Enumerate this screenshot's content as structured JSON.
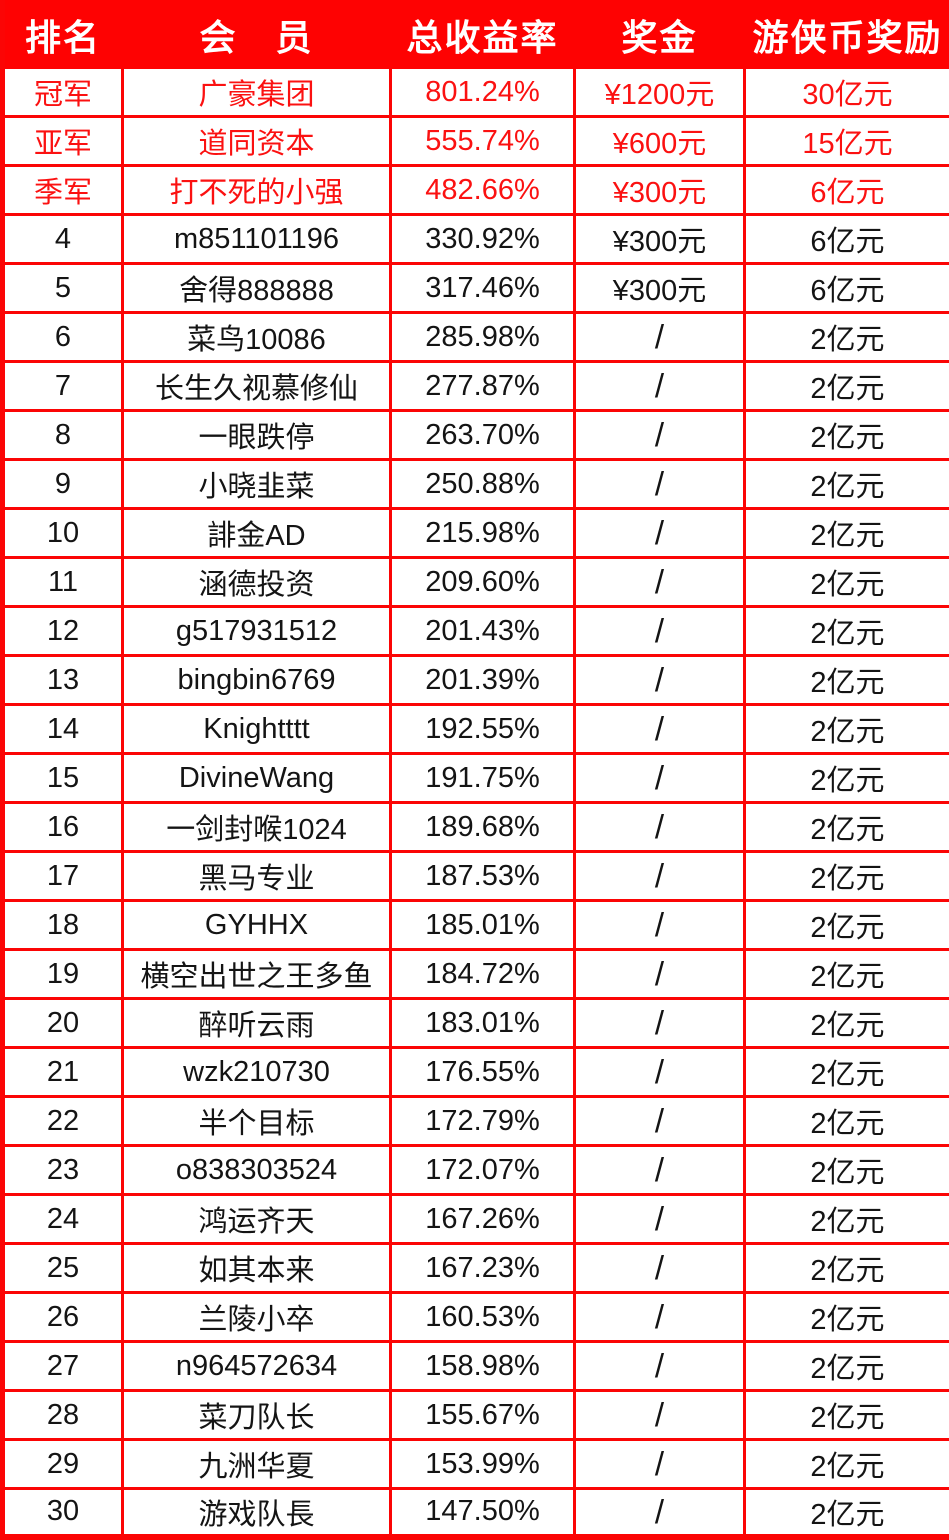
{
  "colors": {
    "accent_red": "#fe0202",
    "border_red": "#fb0505",
    "highlight_text_red": "#fb1111",
    "normal_text": "#141414",
    "header_text": "#ffffff"
  },
  "table": {
    "columns": [
      {
        "key": "rank",
        "label": "排名"
      },
      {
        "key": "member",
        "label": "会　员"
      },
      {
        "key": "return",
        "label": "总收益率"
      },
      {
        "key": "bonus",
        "label": "奖金"
      },
      {
        "key": "coin",
        "label": "游侠币奖励"
      }
    ],
    "rows": [
      {
        "rank": "冠军",
        "member": "广豪集团",
        "return": "801.24%",
        "bonus": "¥1200元",
        "coin": "30亿元",
        "highlight": true
      },
      {
        "rank": "亚军",
        "member": "道同资本",
        "return": "555.74%",
        "bonus": "¥600元",
        "coin": "15亿元",
        "highlight": true
      },
      {
        "rank": "季军",
        "member": "打不死的小强",
        "return": "482.66%",
        "bonus": "¥300元",
        "coin": "6亿元",
        "highlight": true
      },
      {
        "rank": "4",
        "member": "m851101196",
        "return": "330.92%",
        "bonus": "¥300元",
        "coin": "6亿元",
        "highlight": false
      },
      {
        "rank": "5",
        "member": "舍得888888",
        "return": "317.46%",
        "bonus": "¥300元",
        "coin": "6亿元",
        "highlight": false
      },
      {
        "rank": "6",
        "member": "菜鸟10086",
        "return": "285.98%",
        "bonus": "/",
        "coin": "2亿元",
        "highlight": false
      },
      {
        "rank": "7",
        "member": "长生久视慕修仙",
        "return": "277.87%",
        "bonus": "/",
        "coin": "2亿元",
        "highlight": false
      },
      {
        "rank": "8",
        "member": "一眼跌停",
        "return": "263.70%",
        "bonus": "/",
        "coin": "2亿元",
        "highlight": false
      },
      {
        "rank": "9",
        "member": "小晓韭菜",
        "return": "250.88%",
        "bonus": "/",
        "coin": "2亿元",
        "highlight": false
      },
      {
        "rank": "10",
        "member": "誹金AD",
        "return": "215.98%",
        "bonus": "/",
        "coin": "2亿元",
        "highlight": false
      },
      {
        "rank": "11",
        "member": "涵德投资",
        "return": "209.60%",
        "bonus": "/",
        "coin": "2亿元",
        "highlight": false
      },
      {
        "rank": "12",
        "member": "g517931512",
        "return": "201.43%",
        "bonus": "/",
        "coin": "2亿元",
        "highlight": false
      },
      {
        "rank": "13",
        "member": "bingbin6769",
        "return": "201.39%",
        "bonus": "/",
        "coin": "2亿元",
        "highlight": false
      },
      {
        "rank": "14",
        "member": "Knightttt",
        "return": "192.55%",
        "bonus": "/",
        "coin": "2亿元",
        "highlight": false
      },
      {
        "rank": "15",
        "member": "DivineWang",
        "return": "191.75%",
        "bonus": "/",
        "coin": "2亿元",
        "highlight": false
      },
      {
        "rank": "16",
        "member": "一剑封喉1024",
        "return": "189.68%",
        "bonus": "/",
        "coin": "2亿元",
        "highlight": false
      },
      {
        "rank": "17",
        "member": "黑马专业",
        "return": "187.53%",
        "bonus": "/",
        "coin": "2亿元",
        "highlight": false
      },
      {
        "rank": "18",
        "member": "GYHHX",
        "return": "185.01%",
        "bonus": "/",
        "coin": "2亿元",
        "highlight": false
      },
      {
        "rank": "19",
        "member": "横空出世之王多鱼",
        "return": "184.72%",
        "bonus": "/",
        "coin": "2亿元",
        "highlight": false
      },
      {
        "rank": "20",
        "member": "醉听云雨",
        "return": "183.01%",
        "bonus": "/",
        "coin": "2亿元",
        "highlight": false
      },
      {
        "rank": "21",
        "member": "wzk210730",
        "return": "176.55%",
        "bonus": "/",
        "coin": "2亿元",
        "highlight": false
      },
      {
        "rank": "22",
        "member": "半个目标",
        "return": "172.79%",
        "bonus": "/",
        "coin": "2亿元",
        "highlight": false
      },
      {
        "rank": "23",
        "member": "o838303524",
        "return": "172.07%",
        "bonus": "/",
        "coin": "2亿元",
        "highlight": false
      },
      {
        "rank": "24",
        "member": "鸿运齐天",
        "return": "167.26%",
        "bonus": "/",
        "coin": "2亿元",
        "highlight": false
      },
      {
        "rank": "25",
        "member": "如其本来",
        "return": "167.23%",
        "bonus": "/",
        "coin": "2亿元",
        "highlight": false
      },
      {
        "rank": "26",
        "member": "兰陵小卒",
        "return": "160.53%",
        "bonus": "/",
        "coin": "2亿元",
        "highlight": false
      },
      {
        "rank": "27",
        "member": "n964572634",
        "return": "158.98%",
        "bonus": "/",
        "coin": "2亿元",
        "highlight": false
      },
      {
        "rank": "28",
        "member": "菜刀队长",
        "return": "155.67%",
        "bonus": "/",
        "coin": "2亿元",
        "highlight": false
      },
      {
        "rank": "29",
        "member": "九洲华夏",
        "return": "153.99%",
        "bonus": "/",
        "coin": "2亿元",
        "highlight": false
      },
      {
        "rank": "30",
        "member": "游戏队長",
        "return": "147.50%",
        "bonus": "/",
        "coin": "2亿元",
        "highlight": false
      }
    ]
  },
  "chart_data": {
    "type": "table",
    "title": "",
    "columns": [
      "排名",
      "会　员",
      "总收益率",
      "奖金",
      "游侠币奖励"
    ],
    "rows": [
      [
        "冠军",
        "广豪集团",
        "801.24%",
        "¥1200元",
        "30亿元"
      ],
      [
        "亚军",
        "道同资本",
        "555.74%",
        "¥600元",
        "15亿元"
      ],
      [
        "季军",
        "打不死的小强",
        "482.66%",
        "¥300元",
        "6亿元"
      ],
      [
        "4",
        "m851101196",
        "330.92%",
        "¥300元",
        "6亿元"
      ],
      [
        "5",
        "舍得888888",
        "317.46%",
        "¥300元",
        "6亿元"
      ],
      [
        "6",
        "菜鸟10086",
        "285.98%",
        "/",
        "2亿元"
      ],
      [
        "7",
        "长生久视慕修仙",
        "277.87%",
        "/",
        "2亿元"
      ],
      [
        "8",
        "一眼跌停",
        "263.70%",
        "/",
        "2亿元"
      ],
      [
        "9",
        "小晓韭菜",
        "250.88%",
        "/",
        "2亿元"
      ],
      [
        "10",
        "誹金AD",
        "215.98%",
        "/",
        "2亿元"
      ],
      [
        "11",
        "涵德投资",
        "209.60%",
        "/",
        "2亿元"
      ],
      [
        "12",
        "g517931512",
        "201.43%",
        "/",
        "2亿元"
      ],
      [
        "13",
        "bingbin6769",
        "201.39%",
        "/",
        "2亿元"
      ],
      [
        "14",
        "Knightttt",
        "192.55%",
        "/",
        "2亿元"
      ],
      [
        "15",
        "DivineWang",
        "191.75%",
        "/",
        "2亿元"
      ],
      [
        "16",
        "一剑封喉1024",
        "189.68%",
        "/",
        "2亿元"
      ],
      [
        "17",
        "黑马专业",
        "187.53%",
        "/",
        "2亿元"
      ],
      [
        "18",
        "GYHHX",
        "185.01%",
        "/",
        "2亿元"
      ],
      [
        "19",
        "横空出世之王多鱼",
        "184.72%",
        "/",
        "2亿元"
      ],
      [
        "20",
        "醉听云雨",
        "183.01%",
        "/",
        "2亿元"
      ],
      [
        "21",
        "wzk210730",
        "176.55%",
        "/",
        "2亿元"
      ],
      [
        "22",
        "半个目标",
        "172.79%",
        "/",
        "2亿元"
      ],
      [
        "23",
        "o838303524",
        "172.07%",
        "/",
        "2亿元"
      ],
      [
        "24",
        "鸿运齐天",
        "167.26%",
        "/",
        "2亿元"
      ],
      [
        "25",
        "如其本来",
        "167.23%",
        "/",
        "2亿元"
      ],
      [
        "26",
        "兰陵小卒",
        "160.53%",
        "/",
        "2亿元"
      ],
      [
        "27",
        "n964572634",
        "158.98%",
        "/",
        "2亿元"
      ],
      [
        "28",
        "菜刀队长",
        "155.67%",
        "/",
        "2亿元"
      ],
      [
        "29",
        "九洲华夏",
        "153.99%",
        "/",
        "2亿元"
      ],
      [
        "30",
        "游戏队長",
        "147.50%",
        "/",
        "2亿元"
      ]
    ]
  }
}
